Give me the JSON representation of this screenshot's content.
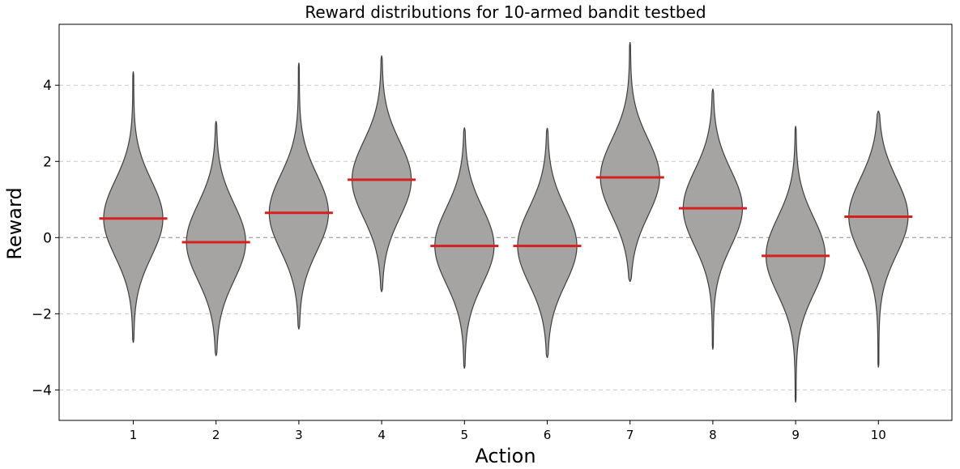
{
  "chart_data": {
    "type": "violin",
    "title": "Reward distributions for 10-armed bandit testbed",
    "xlabel": "Action",
    "ylabel": "Reward",
    "categories": [
      "1",
      "2",
      "3",
      "4",
      "5",
      "6",
      "7",
      "8",
      "9",
      "10"
    ],
    "means": [
      0.5,
      -0.12,
      0.65,
      1.52,
      -0.22,
      -0.22,
      1.58,
      0.77,
      -0.48,
      0.55
    ],
    "ranges": [
      [
        -2.75,
        4.35
      ],
      [
        -3.1,
        3.05
      ],
      [
        -2.4,
        4.58
      ],
      [
        -1.42,
        4.77
      ],
      [
        -3.43,
        2.88
      ],
      [
        -3.15,
        2.87
      ],
      [
        -1.15,
        5.12
      ],
      [
        -2.93,
        3.9
      ],
      [
        -4.32,
        2.92
      ],
      [
        -3.4,
        3.32
      ]
    ],
    "ylim": [
      -4.8,
      5.6
    ],
    "yticks": [
      -4,
      -2,
      0,
      2,
      4
    ],
    "ytick_labels": [
      "−4",
      "−2",
      "0",
      "2",
      "4"
    ],
    "grid": true,
    "colors": {
      "violin_fill": "#a5a4a3",
      "violin_edge": "#3f3f3f",
      "mean_line": "#d62020",
      "grid": "#cccccc",
      "zero_line": "#aaaaaa"
    }
  }
}
